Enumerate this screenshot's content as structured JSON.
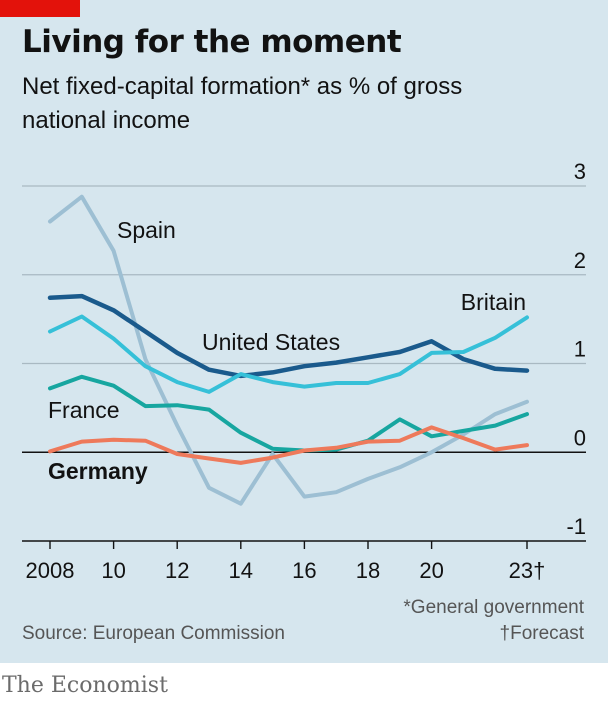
{
  "header": {
    "title": "Living for the moment",
    "subtitle": "Net fixed-capital formation* as % of gross national income"
  },
  "footer": {
    "note_general": "*General government",
    "note_forecast": "†Forecast",
    "source": "Source: European Commission",
    "brand": "The Economist"
  },
  "colors": {
    "background": "#d6e6ee",
    "tag": "#e3120b",
    "grid": "#a9b9c2",
    "zero": "#121212"
  },
  "chart_data": {
    "type": "line",
    "x": [
      2008,
      2009,
      2010,
      2011,
      2012,
      2013,
      2014,
      2015,
      2016,
      2017,
      2018,
      2019,
      2020,
      2021,
      2022,
      2023
    ],
    "xlim": [
      2008,
      2023
    ],
    "ylim": [
      -1,
      3
    ],
    "yticks": [
      3,
      2,
      1,
      0,
      -1
    ],
    "ytick_labels": [
      "3",
      "2",
      "1",
      "0",
      "-1"
    ],
    "xticks": [
      2008,
      2010,
      2012,
      2014,
      2016,
      2018,
      2020,
      2023
    ],
    "xtick_labels": [
      "2008",
      "10",
      "12",
      "14",
      "16",
      "18",
      "20",
      "23†"
    ],
    "grid": true,
    "series": [
      {
        "name": "Spain",
        "color": "#9dbfd3",
        "bold": false,
        "values": [
          2.6,
          2.88,
          2.27,
          1.05,
          0.3,
          -0.4,
          -0.58,
          -0.02,
          -0.5,
          -0.45,
          -0.3,
          -0.17,
          0.0,
          0.2,
          0.43,
          0.57
        ]
      },
      {
        "name": "United States",
        "color": "#1a5a8c",
        "bold": false,
        "values": [
          1.74,
          1.76,
          1.6,
          1.36,
          1.12,
          0.93,
          0.86,
          0.9,
          0.97,
          1.01,
          1.07,
          1.13,
          1.25,
          1.05,
          0.94,
          0.92
        ]
      },
      {
        "name": "Britain",
        "color": "#36c0d8",
        "bold": false,
        "values": [
          1.36,
          1.53,
          1.28,
          0.97,
          0.79,
          0.68,
          0.88,
          0.79,
          0.74,
          0.78,
          0.78,
          0.88,
          1.12,
          1.13,
          1.29,
          1.52
        ]
      },
      {
        "name": "France",
        "color": "#17a6a0",
        "bold": false,
        "values": [
          0.72,
          0.85,
          0.75,
          0.52,
          0.53,
          0.48,
          0.22,
          0.04,
          0.02,
          0.03,
          0.13,
          0.37,
          0.18,
          0.24,
          0.3,
          0.43
        ]
      },
      {
        "name": "Germany",
        "color": "#ee7a5b",
        "bold": true,
        "values": [
          0.01,
          0.12,
          0.14,
          0.13,
          -0.02,
          -0.07,
          -0.12,
          -0.06,
          0.02,
          0.05,
          0.12,
          0.13,
          0.28,
          0.16,
          0.03,
          0.08
        ]
      }
    ]
  }
}
